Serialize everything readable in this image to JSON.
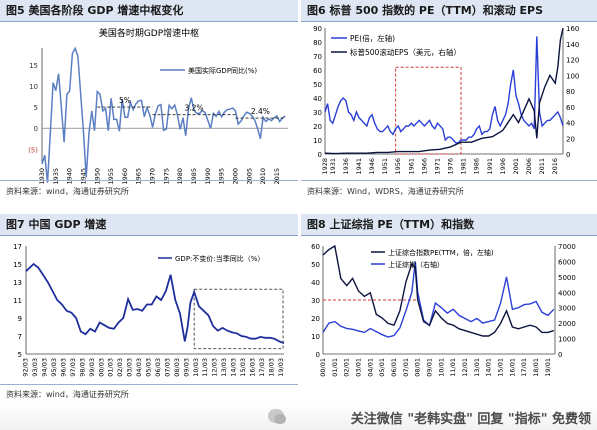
{
  "panels": [
    {
      "title": "图5 美国各阶段 GDP 增速中枢变化",
      "source": "资料来源：wind，海通证券研究所"
    },
    {
      "title": "图6 标普 500 指数的 PE（TTM）和滚动 EPS",
      "source": "资料来源：Wind，WDRS，海通证券研究所"
    },
    {
      "title": "图7 中国 GDP 增速",
      "source": "资料来源：wind，海通证券研究所"
    },
    {
      "title": "图8 上证综指 PE（TTM）和指数",
      "source": ""
    }
  ],
  "footer": {
    "text": "关注微信 \"老韩实盘\" 回复 \"指标\" 免费领"
  },
  "colors": {
    "series": "#1f2f9c",
    "line_light": "#5b7fc2",
    "dash": "#222222",
    "red_box": "#d43a3a"
  },
  "chart_data": [
    {
      "type": "line",
      "title": "美国各时期GDP增速中枢",
      "x_ticks": [
        "1930",
        "1935",
        "1940",
        "1945",
        "1950",
        "1955",
        "1960",
        "1965",
        "1970",
        "1975",
        "1980",
        "1985",
        "1990",
        "1995",
        "2000",
        "2005",
        "2010",
        "2015"
      ],
      "y_ticks": [
        "15",
        "10",
        "5",
        "0",
        "(5)"
      ],
      "ylim": [
        -8,
        19
      ],
      "xlim": [
        1930,
        2019
      ],
      "series": [
        {
          "name": "美国实际GDP同比(%)",
          "x": [
            1930,
            1931,
            1932,
            1933,
            1934,
            1935,
            1936,
            1937,
            1938,
            1939,
            1940,
            1941,
            1942,
            1943,
            1944,
            1945,
            1946,
            1947,
            1948,
            1949,
            1950,
            1951,
            1952,
            1953,
            1954,
            1955,
            1956,
            1957,
            1958,
            1959,
            1960,
            1961,
            1962,
            1963,
            1964,
            1965,
            1966,
            1967,
            1968,
            1969,
            1970,
            1971,
            1972,
            1973,
            1974,
            1975,
            1976,
            1977,
            1978,
            1979,
            1980,
            1981,
            1982,
            1983,
            1984,
            1985,
            1986,
            1987,
            1988,
            1989,
            1990,
            1991,
            1992,
            1993,
            1994,
            1995,
            1996,
            1997,
            1998,
            1999,
            2000,
            2001,
            2002,
            2003,
            2004,
            2005,
            2006,
            2007,
            2008,
            2009,
            2010,
            2011,
            2012,
            2013,
            2014,
            2015,
            2016,
            2017,
            2018
          ],
          "values": [
            -8.5,
            -6.4,
            -12.9,
            -1.2,
            10.8,
            8.9,
            12.9,
            5.1,
            -3.3,
            8.0,
            8.8,
            17.7,
            18.9,
            17.0,
            8.0,
            -1.0,
            -11.6,
            -1.1,
            4.1,
            -0.6,
            8.7,
            8.0,
            4.1,
            4.7,
            -0.6,
            7.1,
            2.1,
            2.1,
            -0.7,
            6.9,
            2.6,
            2.6,
            6.1,
            4.4,
            5.8,
            6.5,
            6.6,
            2.7,
            4.9,
            3.1,
            0.2,
            3.3,
            5.3,
            5.6,
            -0.5,
            -0.2,
            5.4,
            4.6,
            5.5,
            3.2,
            -0.3,
            2.5,
            -1.8,
            4.6,
            7.2,
            4.2,
            3.5,
            3.5,
            4.2,
            3.7,
            1.9,
            -0.1,
            3.5,
            2.8,
            4.0,
            2.7,
            3.8,
            4.4,
            4.5,
            4.8,
            4.1,
            1.0,
            1.7,
            2.9,
            3.8,
            3.5,
            2.9,
            1.9,
            -0.1,
            -2.5,
            2.6,
            1.6,
            2.2,
            1.8,
            2.5,
            2.9,
            1.6,
            2.4,
            2.9
          ]
        }
      ],
      "annotations": [
        {
          "label": "5%",
          "level": 5,
          "x_from": 1950,
          "x_to": 1970
        },
        {
          "label": "3.2%",
          "level": 3.2,
          "x_from": 1970,
          "x_to": 2000
        },
        {
          "label": "2.4%",
          "level": 2.4,
          "x_from": 2000,
          "x_to": 2018
        }
      ],
      "grid": false
    },
    {
      "type": "line",
      "x_ticks": [
        "1928",
        "1931",
        "1936",
        "1941",
        "1946",
        "1951",
        "1956",
        "1961",
        "1966",
        "1971",
        "1976",
        "1981",
        "1986",
        "1991",
        "1996",
        "2001",
        "2006",
        "2011",
        "2016"
      ],
      "y_ticks_left": [
        "90",
        "80",
        "70",
        "60",
        "50",
        "40",
        "30",
        "20",
        "10",
        "0"
      ],
      "y_ticks_right": [
        "160",
        "140",
        "120",
        "100",
        "80",
        "60",
        "40",
        "20",
        "0"
      ],
      "ylim_left": [
        0,
        90
      ],
      "ylim_right": [
        0,
        160
      ],
      "xlim": [
        1928,
        2019
      ],
      "legend": [
        "PE(倍，左轴)",
        "标普500滚动EPS（美元，右轴）"
      ],
      "series": [
        {
          "name": "PE(倍，左轴)",
          "axis": "left",
          "x": [
            1928,
            1929,
            1930,
            1931,
            1932,
            1933,
            1934,
            1935,
            1936,
            1937,
            1938,
            1939,
            1940,
            1941,
            1942,
            1943,
            1944,
            1945,
            1946,
            1947,
            1948,
            1949,
            1950,
            1951,
            1952,
            1953,
            1954,
            1955,
            1956,
            1957,
            1958,
            1959,
            1960,
            1961,
            1962,
            1963,
            1964,
            1965,
            1966,
            1967,
            1968,
            1969,
            1970,
            1971,
            1972,
            1973,
            1974,
            1975,
            1976,
            1977,
            1978,
            1979,
            1980,
            1981,
            1982,
            1983,
            1984,
            1985,
            1986,
            1987,
            1988,
            1989,
            1990,
            1991,
            1992,
            1993,
            1994,
            1995,
            1996,
            1997,
            1998,
            1999,
            2000,
            2001,
            2002,
            2003,
            2004,
            2005,
            2006,
            2007,
            2008,
            2009,
            2010,
            2011,
            2012,
            2013,
            2014,
            2015,
            2016,
            2017,
            2018,
            2019
          ],
          "values": [
            30,
            36,
            24,
            22,
            28,
            34,
            38,
            40,
            38,
            30,
            28,
            24,
            30,
            26,
            24,
            22,
            20,
            26,
            28,
            22,
            18,
            16,
            16,
            18,
            20,
            16,
            14,
            18,
            20,
            16,
            18,
            20,
            20,
            22,
            20,
            22,
            24,
            22,
            20,
            22,
            24,
            20,
            18,
            22,
            20,
            18,
            10,
            12,
            12,
            10,
            8,
            8,
            10,
            10,
            10,
            12,
            12,
            14,
            18,
            20,
            14,
            16,
            16,
            18,
            28,
            34,
            24,
            20,
            24,
            28,
            36,
            50,
            60,
            42,
            36,
            28,
            24,
            22,
            20,
            22,
            18,
            84,
            30,
            20,
            22,
            24,
            24,
            26,
            28,
            30,
            26,
            20
          ]
        },
        {
          "name": "标普500滚动EPS（美元，右轴）",
          "axis": "right",
          "x": [
            1928,
            1932,
            1936,
            1940,
            1944,
            1948,
            1952,
            1956,
            1960,
            1964,
            1968,
            1972,
            1976,
            1980,
            1984,
            1988,
            1992,
            1996,
            2000,
            2002,
            2004,
            2006,
            2008,
            2009,
            2010,
            2012,
            2014,
            2016,
            2017,
            2018,
            2019
          ],
          "values": [
            1,
            0.5,
            1,
            1,
            1,
            2,
            2,
            3,
            3,
            3,
            5,
            6,
            9,
            15,
            15,
            20,
            22,
            30,
            50,
            40,
            55,
            70,
            55,
            20,
            65,
            85,
            100,
            90,
            110,
            145,
            160
          ]
        }
      ],
      "highlight_box": {
        "x_from": 1955,
        "x_to": 1980,
        "y_from": 0,
        "y_to": 62,
        "axis": "left"
      },
      "grid": false
    },
    {
      "type": "line",
      "x_ticks": [
        "92/03",
        "93/03",
        "94/03",
        "95/03",
        "96/03",
        "97/03",
        "98/03",
        "99/03",
        "00/03",
        "01/03",
        "02/03",
        "03/03",
        "04/03",
        "05/03",
        "06/03",
        "07/03",
        "08/03",
        "09/03",
        "10/03",
        "11/03",
        "12/03",
        "13/03",
        "14/03",
        "15/03",
        "16/03",
        "17/03",
        "18/03",
        "19/03"
      ],
      "y_ticks": [
        "17",
        "15",
        "13",
        "11",
        "9",
        "7",
        "5"
      ],
      "ylim": [
        5,
        17
      ],
      "xlim": [
        1992.2,
        2019.5
      ],
      "series": [
        {
          "name": "GDP:不变价:当季同比（%）",
          "x": [
            1992.2,
            1993.0,
            1993.5,
            1994.0,
            1994.5,
            1995.0,
            1995.5,
            1996.0,
            1996.5,
            1997.0,
            1997.5,
            1998.0,
            1998.5,
            1999.0,
            1999.5,
            2000.0,
            2000.5,
            2001.0,
            2001.5,
            2002.0,
            2002.5,
            2003.0,
            2003.5,
            2004.0,
            2004.5,
            2005.0,
            2005.5,
            2006.0,
            2006.5,
            2007.0,
            2007.5,
            2008.0,
            2008.5,
            2009.0,
            2009.3,
            2009.6,
            2010.0,
            2010.5,
            2011.0,
            2011.5,
            2012.0,
            2012.5,
            2013.0,
            2013.5,
            2014.0,
            2014.5,
            2015.0,
            2015.5,
            2016.0,
            2016.5,
            2017.0,
            2017.5,
            2018.0,
            2018.5,
            2019.0,
            2019.5
          ],
          "values": [
            14.2,
            15.0,
            14.6,
            13.8,
            13.0,
            12.0,
            11.0,
            10.5,
            9.8,
            9.6,
            9.0,
            7.5,
            7.2,
            7.8,
            7.5,
            8.5,
            8.2,
            7.9,
            7.8,
            8.5,
            9.0,
            11.1,
            9.9,
            10.0,
            9.8,
            10.5,
            10.5,
            11.4,
            11.0,
            12.0,
            13.8,
            11.0,
            9.5,
            6.4,
            8.0,
            10.7,
            11.9,
            10.3,
            9.8,
            9.3,
            8.1,
            7.6,
            7.9,
            7.6,
            7.4,
            7.3,
            7.0,
            6.9,
            6.7,
            6.7,
            6.9,
            6.8,
            6.8,
            6.7,
            6.4,
            6.2
          ]
        }
      ],
      "highlight_box": {
        "x_from": 2010,
        "x_to": 2019.4,
        "y_from": 5.6,
        "y_to": 12.2
      },
      "grid": false
    },
    {
      "type": "line",
      "x_ticks": [
        "00/01",
        "01/01",
        "02/01",
        "03/01",
        "04/01",
        "05/01",
        "06/01",
        "07/01",
        "08/01",
        "09/01",
        "10/01",
        "11/01",
        "12/01",
        "13/01",
        "14/01",
        "15/01",
        "16/01",
        "17/01",
        "18/01",
        "19/01"
      ],
      "y_ticks_left": [
        "60",
        "50",
        "40",
        "30",
        "20",
        "10",
        "0"
      ],
      "y_ticks_right": [
        "7000",
        "6000",
        "5000",
        "4000",
        "3000",
        "2000",
        "1000",
        "0"
      ],
      "ylim_left": [
        0,
        60
      ],
      "ylim_right": [
        0,
        7000
      ],
      "xlim": [
        2000,
        2019.6
      ],
      "legend": [
        "上证综合指数PE(TTM，倍，左轴)",
        "上证综指（右轴）"
      ],
      "series": [
        {
          "name": "上证综合指数PE(TTM，倍，左轴)",
          "axis": "left",
          "x": [
            2000.0,
            2000.5,
            2001.0,
            2001.5,
            2002.0,
            2002.5,
            2003.0,
            2003.5,
            2004.0,
            2004.5,
            2005.0,
            2005.5,
            2006.0,
            2006.5,
            2007.0,
            2007.5,
            2007.8,
            2008.0,
            2008.5,
            2009.0,
            2009.5,
            2010.0,
            2010.5,
            2011.0,
            2011.5,
            2012.0,
            2012.5,
            2013.0,
            2013.5,
            2014.0,
            2014.5,
            2015.0,
            2015.5,
            2016.0,
            2016.5,
            2017.0,
            2017.5,
            2018.0,
            2018.5,
            2019.0,
            2019.5
          ],
          "values": [
            55,
            58,
            60,
            42,
            38,
            42,
            35,
            32,
            34,
            22,
            20,
            17,
            16,
            24,
            40,
            50,
            48,
            30,
            18,
            16,
            24,
            20,
            17,
            16,
            14,
            13,
            12,
            11,
            10,
            10,
            12,
            17,
            24,
            15,
            14,
            15,
            16,
            15,
            12,
            12,
            13
          ]
        },
        {
          "name": "上证综指（右轴）",
          "axis": "right",
          "x": [
            2000.0,
            2000.5,
            2001.0,
            2001.5,
            2002.0,
            2002.5,
            2003.0,
            2003.5,
            2004.0,
            2004.5,
            2005.0,
            2005.5,
            2006.0,
            2006.5,
            2007.0,
            2007.5,
            2007.8,
            2008.0,
            2008.5,
            2009.0,
            2009.5,
            2010.0,
            2010.5,
            2011.0,
            2011.5,
            2012.0,
            2012.5,
            2013.0,
            2013.5,
            2014.0,
            2014.5,
            2015.0,
            2015.5,
            2016.0,
            2016.5,
            2017.0,
            2017.5,
            2018.0,
            2018.5,
            2019.0,
            2019.5
          ],
          "values": [
            1400,
            2000,
            2100,
            1800,
            1650,
            1600,
            1500,
            1400,
            1650,
            1450,
            1250,
            1100,
            1200,
            1700,
            2800,
            4000,
            6000,
            4000,
            2200,
            1850,
            3300,
            3000,
            2650,
            2900,
            2500,
            2300,
            2100,
            2300,
            2000,
            2100,
            2200,
            3300,
            5000,
            2900,
            3000,
            3200,
            3250,
            3400,
            2700,
            2500,
            2900
          ]
        }
      ],
      "reference_line": {
        "axis": "left",
        "level": 30
      },
      "grid": false
    }
  ]
}
